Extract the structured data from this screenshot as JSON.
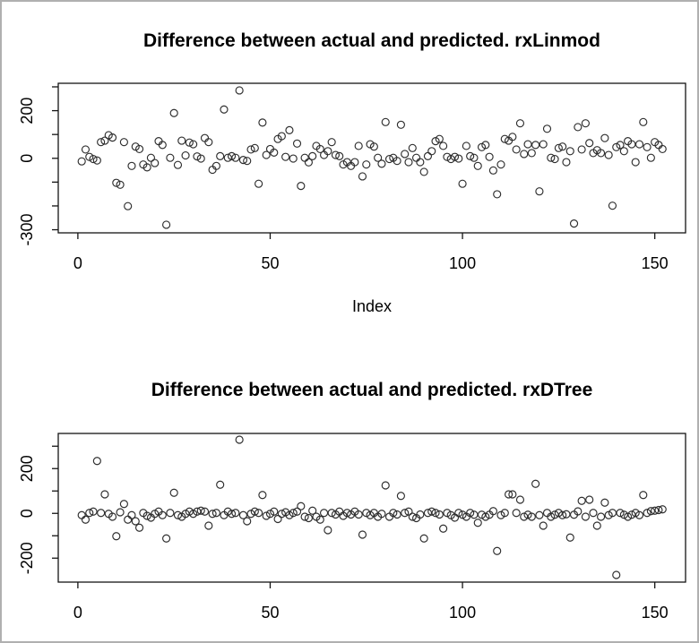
{
  "page": {
    "background": "#ffffff",
    "frame_border_color": "#b0b0b0",
    "point_color": "#2e2e2e",
    "axis_color": "#141414"
  },
  "chart_data": [
    {
      "type": "scatter",
      "title": "Difference between actual and predicted. rxLinmod",
      "xlabel": "Index",
      "ylabel": "",
      "marker": "open-circle",
      "grid": false,
      "legend": "none",
      "x_start": 1,
      "x_step": 1,
      "n_points": 152,
      "xlim": [
        -5.1,
        158
      ],
      "ylim": [
        -313,
        315
      ],
      "x_ticks": [
        0,
        50,
        100,
        150
      ],
      "y_ticks": [
        -300,
        -200,
        -100,
        0,
        100,
        200,
        300
      ],
      "y_tick_labels_shown": [
        -300,
        0,
        200
      ],
      "y": [
        -13,
        37,
        6,
        -3,
        -9,
        68,
        74,
        97,
        87,
        -103,
        -111,
        68,
        -201,
        -32,
        49,
        39,
        -26,
        -38,
        2,
        -20,
        72,
        56,
        -279,
        2,
        190,
        -28,
        74,
        12,
        66,
        59,
        8,
        -1,
        85,
        68,
        -48,
        -32,
        9,
        205,
        2,
        9,
        2,
        285,
        -7,
        -11,
        37,
        43,
        -107,
        150,
        14,
        39,
        24,
        81,
        93,
        6,
        118,
        -1,
        62,
        -116,
        2,
        -17,
        9,
        52,
        39,
        14,
        30,
        68,
        14,
        9,
        -26,
        -16,
        -32,
        -16,
        52,
        -76,
        -26,
        59,
        49,
        2,
        -23,
        152,
        -3,
        2,
        -11,
        141,
        18,
        -16,
        43,
        2,
        -16,
        -57,
        9,
        30,
        72,
        81,
        52,
        6,
        -3,
        6,
        -1,
        -107,
        52,
        9,
        2,
        -32,
        47,
        56,
        6,
        -51,
        -151,
        -26,
        81,
        74,
        90,
        37,
        147,
        18,
        59,
        22,
        56,
        -139,
        59,
        124,
        2,
        -3,
        43,
        49,
        -16,
        30,
        -274,
        131,
        37,
        147,
        64,
        22,
        34,
        22,
        85,
        14,
        -199,
        47,
        56,
        30,
        72,
        59,
        -16,
        59,
        152,
        47,
        2,
        68,
        56,
        39
      ]
    },
    {
      "type": "scatter",
      "title": "Difference between actual and predicted. rxDTree",
      "xlabel": "",
      "ylabel": "",
      "marker": "open-circle",
      "grid": false,
      "legend": "none",
      "x_start": 1,
      "x_step": 1,
      "n_points": 152,
      "xlim": [
        -5.1,
        158
      ],
      "ylim": [
        -307,
        357
      ],
      "x_ticks": [
        0,
        50,
        100,
        150
      ],
      "y_ticks": [
        -200,
        -100,
        0,
        100,
        200,
        300
      ],
      "y_tick_labels_shown": [
        -200,
        0,
        200
      ],
      "y": [
        -8,
        -28,
        2,
        8,
        234,
        2,
        85,
        -2,
        -15,
        -102,
        5,
        42,
        -28,
        -8,
        -35,
        -64,
        2,
        -11,
        -19,
        -2,
        8,
        -8,
        -112,
        2,
        92,
        -8,
        -15,
        -2,
        8,
        -2,
        8,
        12,
        8,
        -55,
        -2,
        2,
        128,
        -8,
        8,
        -2,
        2,
        329,
        -8,
        -35,
        -2,
        8,
        2,
        82,
        -11,
        -2,
        8,
        -25,
        -2,
        5,
        -8,
        2,
        8,
        32,
        -15,
        -21,
        12,
        -15,
        -28,
        2,
        -75,
        2,
        -5,
        8,
        -11,
        2,
        -5,
        8,
        -5,
        -95,
        2,
        -8,
        2,
        -15,
        -2,
        125,
        -15,
        2,
        -5,
        78,
        2,
        8,
        -15,
        -21,
        -5,
        -112,
        2,
        8,
        2,
        -5,
        -68,
        2,
        -8,
        -19,
        2,
        -6,
        -15,
        2,
        -6,
        -42,
        -6,
        -15,
        -6,
        10,
        -168,
        -8,
        2,
        85,
        85,
        2,
        61,
        -15,
        -6,
        -15,
        132,
        -8,
        -55,
        2,
        -15,
        -6,
        2,
        -8,
        -4,
        -108,
        -6,
        9,
        56,
        -15,
        61,
        2,
        -55,
        -15,
        48,
        -8,
        2,
        -275,
        2,
        -6,
        -15,
        -6,
        2,
        -8,
        82,
        2,
        10,
        12,
        15,
        18
      ]
    }
  ]
}
